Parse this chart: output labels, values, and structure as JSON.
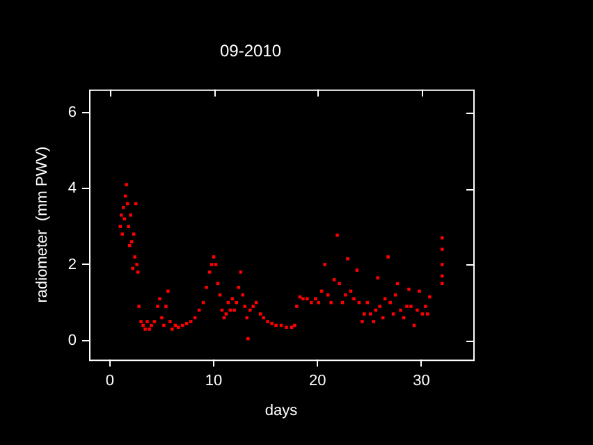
{
  "chart_data": {
    "type": "scatter",
    "title": "09-2010",
    "xlabel": "days",
    "ylabel": "radiometer  (mm PWV)",
    "xlim": [
      -2,
      35
    ],
    "ylim": [
      -0.5,
      6.6
    ],
    "xticks": [
      0,
      10,
      20,
      30
    ],
    "yticks": [
      0,
      2,
      4,
      6
    ],
    "grid": false,
    "legend": false,
    "marker": "square",
    "series": [
      {
        "color": "#ff0000",
        "x": [
          1.0,
          1.1,
          1.2,
          1.3,
          1.4,
          1.5,
          1.6,
          1.7,
          1.8,
          1.9,
          2.0,
          2.1,
          2.2,
          2.3,
          2.4,
          2.5,
          2.6,
          2.7,
          2.8,
          3.0,
          3.2,
          3.4,
          3.6,
          3.8,
          4.0,
          4.3,
          4.6,
          4.8,
          5.0,
          5.2,
          5.4,
          5.6,
          5.8,
          6.0,
          6.3,
          6.6,
          7.0,
          7.4,
          7.8,
          8.2,
          8.6,
          9.0,
          9.3,
          9.6,
          9.8,
          10.0,
          10.2,
          10.4,
          10.6,
          10.8,
          11.0,
          11.2,
          11.4,
          11.6,
          11.8,
          12.0,
          12.2,
          12.4,
          12.6,
          12.8,
          13.0,
          13.2,
          13.3,
          13.5,
          13.8,
          14.1,
          14.5,
          14.8,
          15.2,
          15.6,
          16.0,
          16.5,
          17.0,
          17.5,
          17.8,
          18.0,
          18.3,
          18.6,
          19.0,
          19.4,
          19.8,
          20.1,
          20.4,
          20.7,
          21.0,
          21.3,
          21.6,
          21.9,
          22.1,
          22.4,
          22.7,
          22.9,
          23.2,
          23.5,
          23.8,
          24.0,
          24.3,
          24.5,
          24.8,
          25.1,
          25.4,
          25.6,
          25.8,
          26.0,
          26.3,
          26.5,
          26.8,
          27.0,
          27.3,
          27.5,
          27.7,
          28.0,
          28.3,
          28.6,
          28.8,
          29.0,
          29.3,
          29.6,
          29.8,
          30.1,
          30.4,
          30.6,
          30.8,
          32.0,
          32.0,
          32.0,
          32.0,
          32.0
        ],
        "values": [
          3.0,
          3.3,
          2.8,
          3.5,
          3.2,
          3.8,
          4.1,
          3.6,
          3.0,
          2.5,
          3.3,
          2.6,
          1.9,
          2.8,
          2.2,
          3.6,
          2.0,
          1.8,
          0.9,
          0.5,
          0.4,
          0.3,
          0.5,
          0.3,
          0.4,
          0.5,
          0.9,
          1.1,
          0.6,
          0.4,
          0.9,
          1.3,
          0.5,
          0.3,
          0.4,
          0.35,
          0.4,
          0.45,
          0.5,
          0.6,
          0.8,
          1.0,
          1.4,
          1.8,
          2.0,
          2.2,
          2.0,
          1.5,
          1.2,
          0.8,
          0.6,
          0.7,
          1.0,
          0.8,
          1.1,
          0.8,
          1.0,
          1.4,
          1.8,
          1.2,
          0.9,
          0.6,
          0.05,
          0.8,
          0.9,
          1.0,
          0.7,
          0.6,
          0.5,
          0.45,
          0.4,
          0.4,
          0.35,
          0.35,
          0.4,
          0.9,
          1.15,
          1.1,
          1.1,
          1.0,
          1.1,
          1.0,
          1.3,
          2.0,
          1.2,
          1.0,
          1.6,
          2.77,
          1.5,
          1.0,
          1.2,
          2.15,
          1.3,
          1.1,
          1.85,
          1.0,
          0.5,
          0.7,
          1.0,
          0.7,
          0.5,
          0.8,
          1.65,
          0.9,
          0.6,
          1.1,
          2.2,
          1.0,
          0.7,
          1.2,
          1.5,
          0.8,
          0.6,
          0.9,
          1.35,
          0.9,
          0.4,
          0.8,
          1.3,
          0.7,
          0.9,
          0.7,
          1.15,
          2.7,
          2.4,
          2.0,
          1.7,
          1.5
        ]
      }
    ]
  }
}
